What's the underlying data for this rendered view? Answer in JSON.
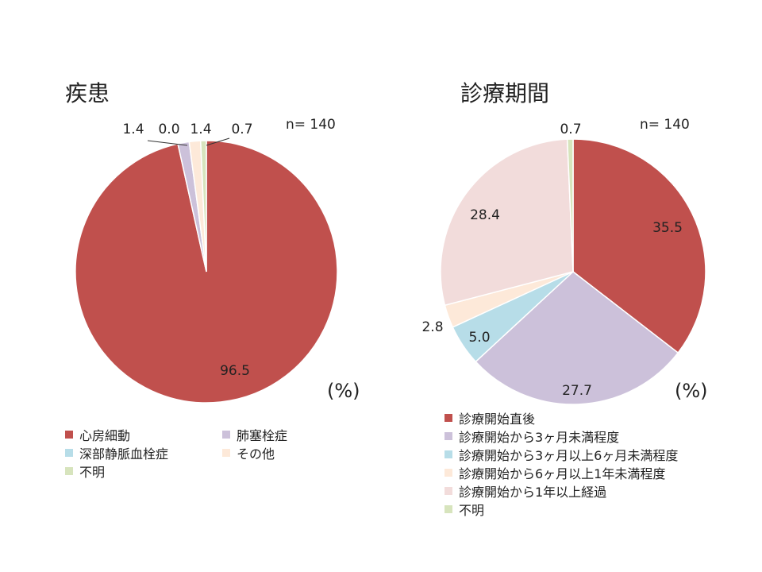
{
  "left": {
    "title": "疾患",
    "n_label": "n= 140",
    "unit": "(%)",
    "legend": [
      "心房細動",
      "肺塞栓症",
      "深部静脈血栓症",
      "その他",
      "不明"
    ]
  },
  "right": {
    "title": "診療期間",
    "n_label": "n= 140",
    "unit": "(%)",
    "legend": [
      "診療開始直後",
      "診療開始から3ヶ月未満程度",
      "診療開始から3ヶ月以上6ヶ月未満程度",
      "診療開始から6ヶ月以上1年未満程度",
      "診療開始から1年以上経過",
      "不明"
    ]
  },
  "chart_data": [
    {
      "type": "pie",
      "title": "疾患",
      "categories": [
        "心房細動",
        "肺塞栓症",
        "深部静脈血栓症",
        "その他",
        "不明"
      ],
      "values": [
        96.5,
        1.4,
        0.0,
        1.4,
        0.7
      ],
      "labels": [
        "96.5",
        "1.4",
        "0.0",
        "1.4",
        "0.7"
      ],
      "colors": [
        "#c0504d",
        "#ccc1da",
        "#b7dde8",
        "#fde9d9",
        "#d7e4bd"
      ],
      "start": "12 o'clock",
      "direction": "clockwise"
    },
    {
      "type": "pie",
      "title": "診療期間",
      "categories": [
        "診療開始直後",
        "診療開始から3ヶ月未満程度",
        "診療開始から3ヶ月以上6ヶ月未満程度",
        "診療開始から6ヶ月以上1年未満程度",
        "診療開始から1年以上経過",
        "不明"
      ],
      "values": [
        35.5,
        27.7,
        5.0,
        2.8,
        28.4,
        0.7
      ],
      "labels": [
        "35.5",
        "27.7",
        "5.0",
        "2.8",
        "28.4",
        "0.7"
      ],
      "colors": [
        "#c0504d",
        "#ccc1da",
        "#b7dde8",
        "#fde9d9",
        "#f2dcdb",
        "#d7e4bd"
      ],
      "start": "12 o'clock",
      "direction": "clockwise"
    }
  ]
}
